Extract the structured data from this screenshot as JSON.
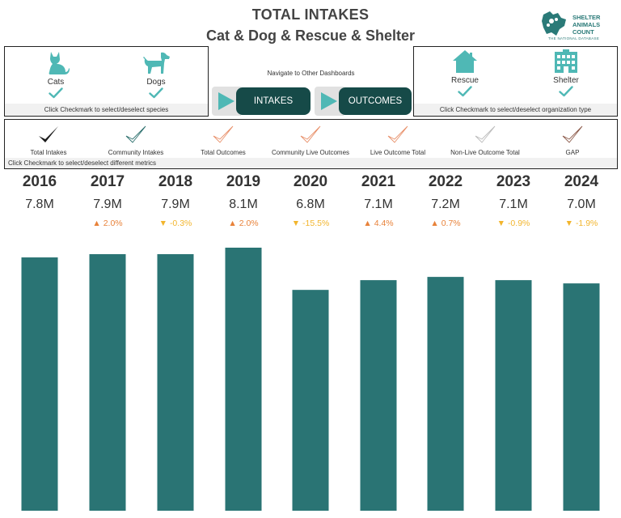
{
  "header": {
    "title": "TOTAL INTAKES",
    "subtitle": "Cat & Dog & Rescue & Shelter",
    "logo_lines": [
      "SHELTER",
      "ANIMALS",
      "COUNT"
    ],
    "logo_tag": "THE NATIONAL DATABASE"
  },
  "species_panel": {
    "items": [
      {
        "label": "Cats",
        "icon": "cat-icon",
        "checked": true
      },
      {
        "label": "Dogs",
        "icon": "dog-icon",
        "checked": true
      }
    ],
    "hint": "Click Checkmark to select/deselect species"
  },
  "navigation": {
    "label": "Navigate to Other Dashboards",
    "buttons": [
      {
        "label": "INTAKES",
        "icon": "play-icon"
      },
      {
        "label": "OUTCOMES",
        "icon": "play-icon"
      }
    ]
  },
  "org_panel": {
    "items": [
      {
        "label": "Rescue",
        "icon": "house-icon",
        "checked": true
      },
      {
        "label": "Shelter",
        "icon": "building-icon",
        "checked": true
      }
    ],
    "hint": "Click Checkmark to select/deselect organization type"
  },
  "metrics_panel": {
    "items": [
      {
        "label": "Total Intakes",
        "color": "#1a1a1a",
        "selected": true
      },
      {
        "label": "Community Intakes",
        "color": "#2a6e6c",
        "selected": false
      },
      {
        "label": "Total Outcomes",
        "color": "#e8906a",
        "selected": false
      },
      {
        "label": "Community Live Outcomes",
        "color": "#e8906a",
        "selected": false
      },
      {
        "label": "Live Outcome Total",
        "color": "#e8906a",
        "selected": false
      },
      {
        "label": "Non-Live Outcome Total",
        "color": "#bbbbbb",
        "selected": false
      },
      {
        "label": "GAP",
        "color": "#8c5a4a",
        "selected": false
      }
    ],
    "hint": "Click Checkmark to select/deselect different metrics"
  },
  "colors": {
    "bar": "#2a7474",
    "teal_icon": "#4fb8b5",
    "increase": "#e8823a",
    "decrease": "#f2b52d"
  },
  "chart_data": {
    "type": "bar",
    "categories": [
      "2016",
      "2017",
      "2018",
      "2019",
      "2020",
      "2021",
      "2022",
      "2023",
      "2024"
    ],
    "values": [
      7.8,
      7.9,
      7.9,
      8.1,
      6.8,
      7.1,
      7.2,
      7.1,
      7.0
    ],
    "value_labels": [
      "7.8M",
      "7.9M",
      "7.9M",
      "8.1M",
      "6.8M",
      "7.1M",
      "7.2M",
      "7.1M",
      "7.0M"
    ],
    "changes": [
      null,
      "2.0%",
      "-0.3%",
      "2.0%",
      "-15.5%",
      "4.4%",
      "0.7%",
      "-0.9%",
      "-1.9%"
    ],
    "change_direction": [
      null,
      "up",
      "down",
      "up",
      "down",
      "up",
      "up",
      "down",
      "down"
    ],
    "unit": "M",
    "ylim": [
      0,
      8.6
    ],
    "grid": false,
    "legend": "none"
  }
}
